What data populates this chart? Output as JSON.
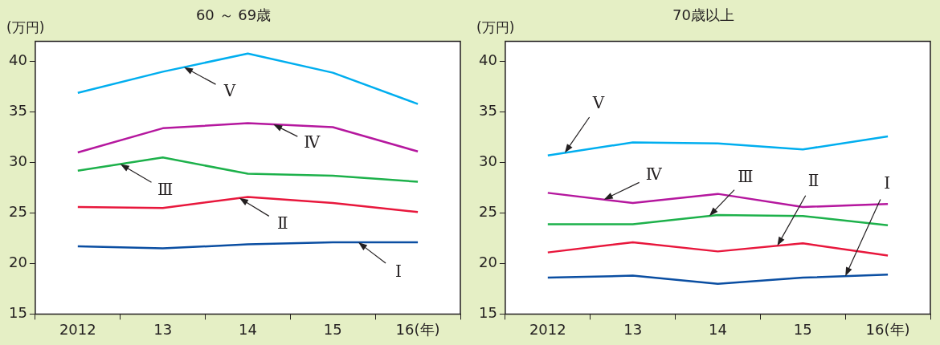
{
  "chart_data": [
    {
      "type": "line",
      "title": "60 ～ 69歳",
      "ylabel": "(万円)",
      "categories": [
        "2012",
        "13",
        "14",
        "15",
        "16(年)"
      ],
      "ylim": [
        15,
        42
      ],
      "yticks": [
        15,
        20,
        25,
        30,
        35,
        40
      ],
      "grid": false,
      "legend": false,
      "marker": "none",
      "line_style": "solid",
      "series": [
        {
          "name": "Ⅰ",
          "color": "#0a4ea2",
          "values": [
            21.7,
            21.5,
            21.9,
            22.1,
            22.1
          ]
        },
        {
          "name": "Ⅱ",
          "color": "#e8173c",
          "values": [
            25.6,
            25.5,
            26.6,
            26.0,
            25.1
          ]
        },
        {
          "name": "Ⅲ",
          "color": "#1db14b",
          "values": [
            29.2,
            30.5,
            28.9,
            28.7,
            28.1
          ]
        },
        {
          "name": "Ⅳ",
          "color": "#b5179e",
          "values": [
            31.0,
            33.4,
            33.9,
            33.5,
            31.1
          ]
        },
        {
          "name": "Ⅴ",
          "color": "#00aeef",
          "values": [
            36.9,
            39.0,
            40.8,
            38.9,
            35.8
          ]
        }
      ]
    },
    {
      "type": "line",
      "title": "70歳以上",
      "ylabel": "(万円)",
      "categories": [
        "2012",
        "13",
        "14",
        "15",
        "16(年)"
      ],
      "ylim": [
        15,
        42
      ],
      "yticks": [
        15,
        20,
        25,
        30,
        35,
        40
      ],
      "grid": false,
      "legend": false,
      "marker": "none",
      "line_style": "solid",
      "series": [
        {
          "name": "Ⅰ",
          "color": "#0a4ea2",
          "values": [
            18.6,
            18.8,
            18.0,
            18.6,
            18.9
          ]
        },
        {
          "name": "Ⅱ",
          "color": "#e8173c",
          "values": [
            21.1,
            22.1,
            21.2,
            22.0,
            20.8
          ]
        },
        {
          "name": "Ⅲ",
          "color": "#1db14b",
          "values": [
            23.9,
            23.9,
            24.8,
            24.7,
            23.8
          ]
        },
        {
          "name": "Ⅳ",
          "color": "#b5179e",
          "values": [
            27.0,
            26.0,
            26.9,
            25.6,
            25.9
          ]
        },
        {
          "name": "Ⅴ",
          "color": "#00aeef",
          "values": [
            30.7,
            32.0,
            31.9,
            31.3,
            32.6
          ]
        }
      ]
    }
  ]
}
